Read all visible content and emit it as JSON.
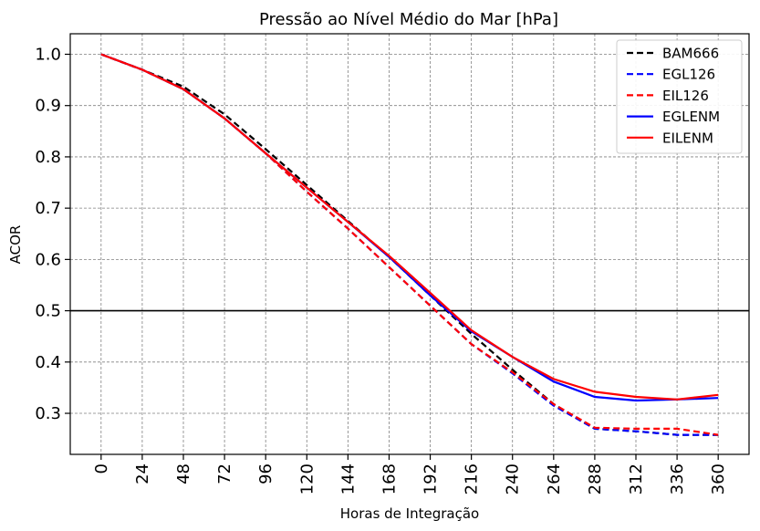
{
  "chart_data": {
    "type": "line",
    "title": "Pressão ao Nível Médio do Mar [hPa]",
    "xlabel": "Horas de Integração",
    "ylabel": "ACOR",
    "x": [
      0,
      24,
      48,
      72,
      96,
      120,
      144,
      168,
      192,
      216,
      240,
      264,
      288,
      312,
      336,
      360
    ],
    "x_tick_labels": [
      "0",
      "24",
      "48",
      "72",
      "96",
      "120",
      "144",
      "168",
      "192",
      "216",
      "240",
      "264",
      "288",
      "312",
      "336",
      "360"
    ],
    "y_ticks": [
      0.3,
      0.4,
      0.5,
      0.6,
      0.7,
      0.8,
      0.9,
      1.0
    ],
    "y_tick_labels": [
      "0.3",
      "0.4",
      "0.5",
      "0.6",
      "0.7",
      "0.8",
      "0.9",
      "1.0"
    ],
    "xlim": [
      -18,
      378
    ],
    "ylim": [
      0.22,
      1.04
    ],
    "reference_line_y": 0.5,
    "grid": true,
    "legend_position": "top-right",
    "series": [
      {
        "name": "BAM666",
        "color": "#000000",
        "style": "dashed",
        "values": [
          1.0,
          0.97,
          0.937,
          0.883,
          0.815,
          0.745,
          0.675,
          0.605,
          0.53,
          0.455,
          0.385,
          0.318,
          0.27,
          0.265,
          0.258,
          0.258
        ]
      },
      {
        "name": "EGL126",
        "color": "#0000ff",
        "style": "dashed",
        "values": [
          1.0,
          0.97,
          0.932,
          0.875,
          0.807,
          0.732,
          0.66,
          0.585,
          0.51,
          0.435,
          0.378,
          0.315,
          0.27,
          0.265,
          0.258,
          0.258
        ]
      },
      {
        "name": "EIL126",
        "color": "#ff0000",
        "style": "dashed",
        "values": [
          1.0,
          0.97,
          0.932,
          0.875,
          0.807,
          0.732,
          0.66,
          0.585,
          0.51,
          0.435,
          0.38,
          0.318,
          0.272,
          0.27,
          0.27,
          0.258
        ]
      },
      {
        "name": "EGLENM",
        "color": "#0000ff",
        "style": "solid",
        "values": [
          1.0,
          0.97,
          0.932,
          0.875,
          0.807,
          0.74,
          0.673,
          0.605,
          0.53,
          0.46,
          0.41,
          0.362,
          0.332,
          0.325,
          0.327,
          0.33
        ]
      },
      {
        "name": "EILENM",
        "color": "#ff0000",
        "style": "solid",
        "values": [
          1.0,
          0.97,
          0.932,
          0.875,
          0.807,
          0.74,
          0.673,
          0.607,
          0.535,
          0.462,
          0.41,
          0.367,
          0.342,
          0.332,
          0.327,
          0.336
        ]
      }
    ]
  }
}
